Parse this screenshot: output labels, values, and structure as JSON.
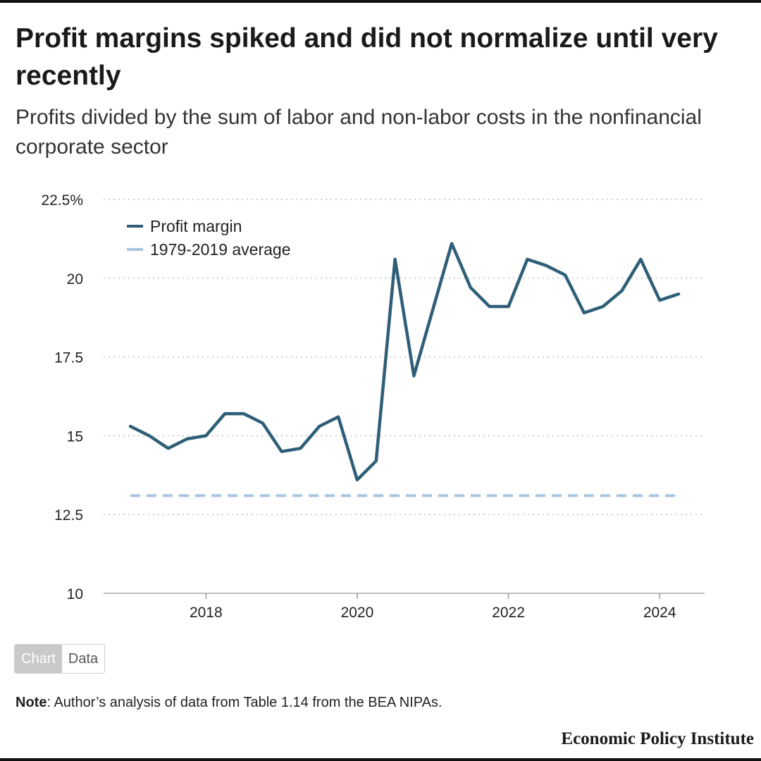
{
  "header": {
    "title": "Profit margins spiked and did not normalize until very recently",
    "subtitle": "Profits divided by the sum of labor and non-labor costs in the nonfinancial corporate sector"
  },
  "chart_data": {
    "type": "line",
    "title": "Profit margins spiked and did not normalize until very recently",
    "subtitle": "Profits divided by the sum of labor and non-labor costs in the nonfinancial corporate sector",
    "xlim": [
      2017,
      2024.25
    ],
    "ylim": [
      10,
      22.5
    ],
    "y_ticks": [
      {
        "value": 22.5,
        "label": "22.5%"
      },
      {
        "value": 20,
        "label": "20"
      },
      {
        "value": 17.5,
        "label": "17.5"
      },
      {
        "value": 15,
        "label": "15"
      },
      {
        "value": 12.5,
        "label": "12.5"
      },
      {
        "value": 10,
        "label": "10"
      }
    ],
    "x_ticks": [
      {
        "value": 2018,
        "label": "2018"
      },
      {
        "value": 2020,
        "label": "2020"
      },
      {
        "value": 2022,
        "label": "2022"
      },
      {
        "value": 2024,
        "label": "2024"
      }
    ],
    "grid": true,
    "legend_position": "top-left",
    "series": [
      {
        "name": "Profit margin",
        "style": "solid",
        "color": "#2f5f78",
        "x": [
          2017.0,
          2017.25,
          2017.5,
          2017.75,
          2018.0,
          2018.25,
          2018.5,
          2018.75,
          2019.0,
          2019.25,
          2019.5,
          2019.75,
          2020.0,
          2020.25,
          2020.5,
          2020.75,
          2021.0,
          2021.25,
          2021.5,
          2021.75,
          2022.0,
          2022.25,
          2022.5,
          2022.75,
          2023.0,
          2023.25,
          2023.5,
          2023.75,
          2024.0,
          2024.25
        ],
        "y": [
          15.3,
          15.0,
          14.6,
          14.9,
          15.0,
          15.7,
          15.7,
          15.4,
          14.5,
          14.6,
          15.3,
          15.6,
          13.6,
          14.2,
          20.6,
          16.9,
          19.0,
          21.1,
          19.7,
          19.1,
          19.1,
          20.6,
          20.4,
          20.1,
          18.9,
          19.1,
          19.6,
          20.6,
          19.3,
          19.5
        ]
      },
      {
        "name": "1979-2019 average",
        "style": "dashed",
        "color": "#a9c4df",
        "x": [
          2017.0,
          2024.25
        ],
        "y": [
          13.1,
          13.1
        ]
      }
    ]
  },
  "toggle": {
    "chart_label": "Chart",
    "data_label": "Data"
  },
  "note": {
    "label": "Note",
    "text": ": Author’s analysis of data from Table 1.14 from the BEA NIPAs."
  },
  "branding": {
    "logo_text": "Economic Policy Institute"
  }
}
